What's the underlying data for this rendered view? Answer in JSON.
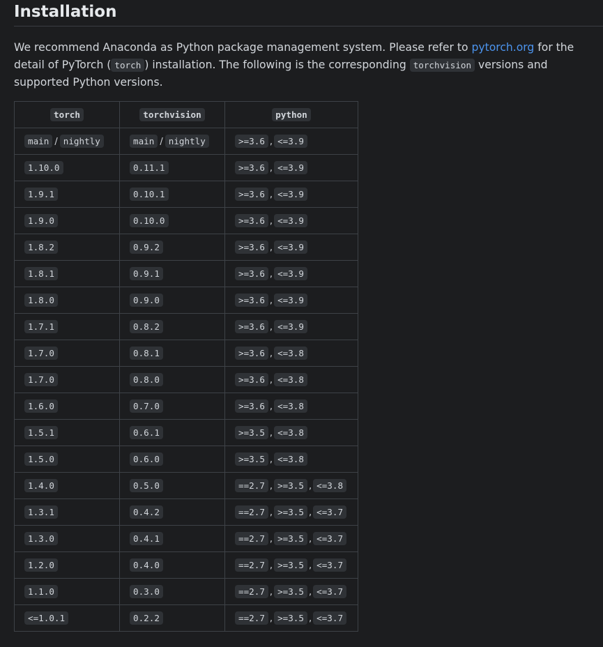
{
  "heading": "Installation",
  "intro": {
    "t1": "We recommend Anaconda as Python package management system. Please refer to ",
    "link": "pytorch.org",
    "t2": " for the detail of PyTorch (",
    "code1": "torch",
    "t3": ") installation. The following is the corresponding ",
    "code2": "torchvision",
    "t4": " versions and supported Python versions."
  },
  "table": {
    "headers": [
      "torch",
      "torchvision",
      "python"
    ],
    "rows": [
      {
        "torch": [
          "main",
          "nightly"
        ],
        "torchvision": [
          "main",
          "nightly"
        ],
        "python": [
          ">=3.6",
          "<=3.9"
        ]
      },
      {
        "torch": [
          "1.10.0"
        ],
        "torchvision": [
          "0.11.1"
        ],
        "python": [
          ">=3.6",
          "<=3.9"
        ]
      },
      {
        "torch": [
          "1.9.1"
        ],
        "torchvision": [
          "0.10.1"
        ],
        "python": [
          ">=3.6",
          "<=3.9"
        ]
      },
      {
        "torch": [
          "1.9.0"
        ],
        "torchvision": [
          "0.10.0"
        ],
        "python": [
          ">=3.6",
          "<=3.9"
        ]
      },
      {
        "torch": [
          "1.8.2"
        ],
        "torchvision": [
          "0.9.2"
        ],
        "python": [
          ">=3.6",
          "<=3.9"
        ]
      },
      {
        "torch": [
          "1.8.1"
        ],
        "torchvision": [
          "0.9.1"
        ],
        "python": [
          ">=3.6",
          "<=3.9"
        ]
      },
      {
        "torch": [
          "1.8.0"
        ],
        "torchvision": [
          "0.9.0"
        ],
        "python": [
          ">=3.6",
          "<=3.9"
        ]
      },
      {
        "torch": [
          "1.7.1"
        ],
        "torchvision": [
          "0.8.2"
        ],
        "python": [
          ">=3.6",
          "<=3.9"
        ]
      },
      {
        "torch": [
          "1.7.0"
        ],
        "torchvision": [
          "0.8.1"
        ],
        "python": [
          ">=3.6",
          "<=3.8"
        ]
      },
      {
        "torch": [
          "1.7.0"
        ],
        "torchvision": [
          "0.8.0"
        ],
        "python": [
          ">=3.6",
          "<=3.8"
        ]
      },
      {
        "torch": [
          "1.6.0"
        ],
        "torchvision": [
          "0.7.0"
        ],
        "python": [
          ">=3.6",
          "<=3.8"
        ]
      },
      {
        "torch": [
          "1.5.1"
        ],
        "torchvision": [
          "0.6.1"
        ],
        "python": [
          ">=3.5",
          "<=3.8"
        ]
      },
      {
        "torch": [
          "1.5.0"
        ],
        "torchvision": [
          "0.6.0"
        ],
        "python": [
          ">=3.5",
          "<=3.8"
        ]
      },
      {
        "torch": [
          "1.4.0"
        ],
        "torchvision": [
          "0.5.0"
        ],
        "python": [
          "==2.7",
          ">=3.5",
          "<=3.8"
        ]
      },
      {
        "torch": [
          "1.3.1"
        ],
        "torchvision": [
          "0.4.2"
        ],
        "python": [
          "==2.7",
          ">=3.5",
          "<=3.7"
        ]
      },
      {
        "torch": [
          "1.3.0"
        ],
        "torchvision": [
          "0.4.1"
        ],
        "python": [
          "==2.7",
          ">=3.5",
          "<=3.7"
        ]
      },
      {
        "torch": [
          "1.2.0"
        ],
        "torchvision": [
          "0.4.0"
        ],
        "python": [
          "==2.7",
          ">=3.5",
          "<=3.7"
        ]
      },
      {
        "torch": [
          "1.1.0"
        ],
        "torchvision": [
          "0.3.0"
        ],
        "python": [
          "==2.7",
          ">=3.5",
          "<=3.7"
        ]
      },
      {
        "torch": [
          "<=1.0.1"
        ],
        "torchvision": [
          "0.2.2"
        ],
        "python": [
          "==2.7",
          ">=3.5",
          "<=3.7"
        ]
      }
    ]
  },
  "separators": {
    "slash": "/",
    "comma": ","
  }
}
